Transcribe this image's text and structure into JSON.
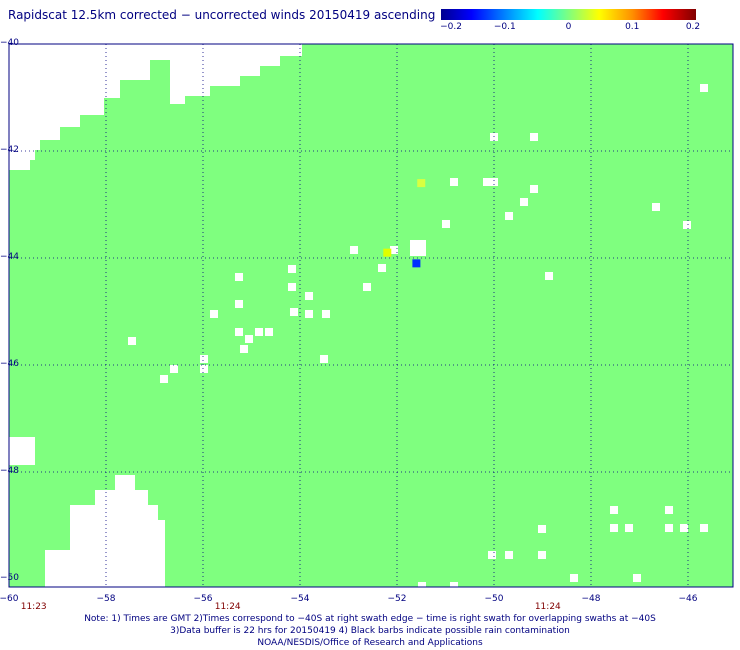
{
  "title": "Rapidscat 12.5km corrected − uncorrected winds 20150419 ascending",
  "colorbar": {
    "ticks": [
      "−0.2",
      "−0.1",
      "0",
      "0.1",
      "0.2"
    ],
    "min": -0.2,
    "max": 0.2
  },
  "map": {
    "background_color": "#7fff7f",
    "nodata_color": "#ffffff",
    "lon_range": [
      -60,
      -45
    ],
    "lat_range": [
      -50,
      -40
    ],
    "lat_ticks": [
      "−40",
      "−42",
      "−44",
      "−46",
      "−48",
      "−50"
    ],
    "lon_ticks": [
      "−60",
      "−58",
      "−56",
      "−54",
      "−52",
      "−50",
      "−48",
      "−46"
    ],
    "swath_times": [
      {
        "label": "11:23",
        "lon": -59.8
      },
      {
        "label": "11:24",
        "lon": -55.8
      },
      {
        "label": "11:24",
        "lon": -49.2
      }
    ],
    "highlight_cells": [
      {
        "lon": -51.5,
        "lat": -42.6,
        "color": "#d8ff40"
      },
      {
        "lon": -52.2,
        "lat": -43.9,
        "color": "#e0ff00"
      },
      {
        "lon": -51.6,
        "lat": -44.1,
        "color": "#0030ff"
      }
    ]
  },
  "notes": [
    "Note: 1) Times are GMT 2)Times correspond to −40S at right swath edge − time is right swath for overlapping swaths at −40S",
    "3)Data buffer is 22 hrs for 20150419 4) Black barbs indicate possible rain contamination",
    "NOAA/NESDIS/Office of Research and Applications"
  ]
}
